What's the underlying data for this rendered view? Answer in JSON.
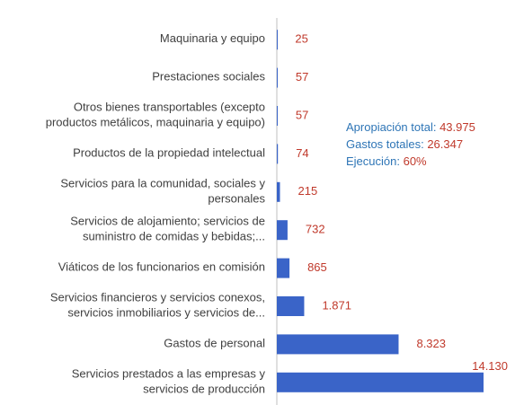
{
  "chart_data": {
    "type": "bar",
    "orientation": "horizontal",
    "categories": [
      "Maquinaria y equipo",
      "Prestaciones sociales",
      "Otros bienes transportables (excepto\nproductos metálicos, maquinaria y equipo)",
      "Productos de la propiedad intelectual",
      "Servicios para la comunidad, sociales y\npersonales",
      "Servicios de alojamiento; servicios de\nsuministro de comidas y bebidas;...",
      "Viáticos de los funcionarios en comisión",
      "Servicios financieros y servicios conexos,\nservicios inmobiliarios y servicios de...",
      "Gastos de personal",
      "Servicios prestados a las empresas y\nservicios de producción"
    ],
    "values": [
      25,
      57,
      57,
      74,
      215,
      732,
      865,
      1871,
      8323,
      14130
    ],
    "value_labels": [
      "25",
      "57",
      "57",
      "74",
      "215",
      "732",
      "865",
      "1.871",
      "8.323",
      "14.130"
    ],
    "color": "#3a64c8",
    "label_color": "#c0392b",
    "annotations": [
      {
        "label": "Apropiación total:",
        "value": "43.975"
      },
      {
        "label": "Gastos totales:",
        "value": "26.347"
      },
      {
        "label": "Ejecución:",
        "value": "60%"
      }
    ]
  }
}
